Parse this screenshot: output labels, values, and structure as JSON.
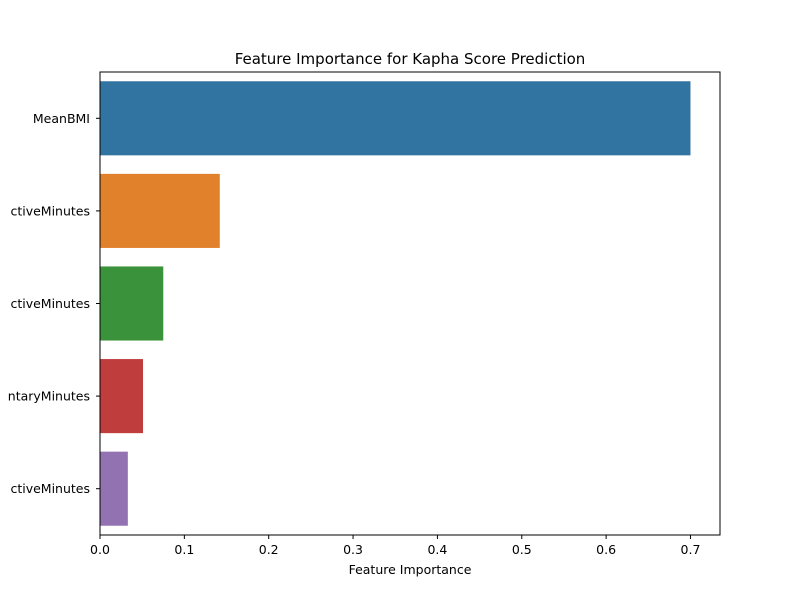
{
  "chart_data": {
    "type": "bar",
    "orientation": "horizontal",
    "title": "Feature Importance for Kapha Score Prediction",
    "xlabel": "Feature Importance",
    "ylabel": "",
    "categories": [
      "MeanBMI",
      "ctiveMinutes",
      "ctiveMinutes",
      "ntaryMinutes",
      "ctiveMinutes"
    ],
    "values": [
      0.7,
      0.142,
      0.075,
      0.051,
      0.033
    ],
    "colors": [
      "#3274a1",
      "#e1812c",
      "#3a923a",
      "#c03d3e",
      "#9372b2"
    ],
    "xlim": [
      0,
      0.735
    ],
    "xticks": [
      0.0,
      0.1,
      0.2,
      0.3,
      0.4,
      0.5,
      0.6,
      0.7
    ],
    "xtick_labels": [
      "0.0",
      "0.1",
      "0.2",
      "0.3",
      "0.4",
      "0.5",
      "0.6",
      "0.7"
    ],
    "grid": false,
    "legend": "none"
  }
}
